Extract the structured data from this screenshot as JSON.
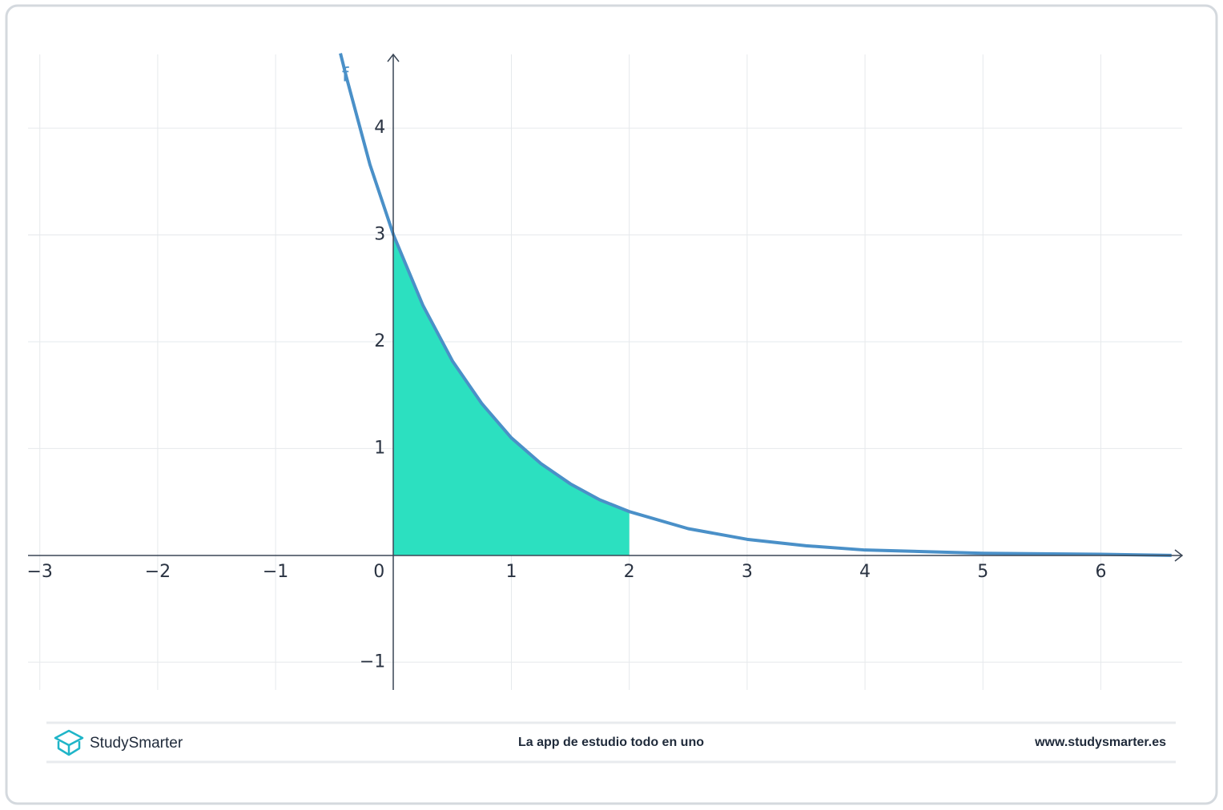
{
  "chart_data": {
    "type": "line",
    "series": [
      {
        "name": "f",
        "color": "#4a90c8",
        "x": [
          -0.45,
          -0.4,
          -0.2,
          0,
          0.25,
          0.5,
          0.75,
          1,
          1.25,
          1.5,
          1.75,
          2,
          2.5,
          3,
          3.5,
          4,
          5,
          6,
          6.6
        ],
        "values": [
          4.7,
          4.48,
          3.66,
          3,
          2.34,
          1.82,
          1.42,
          1.1,
          0.86,
          0.67,
          0.52,
          0.41,
          0.25,
          0.15,
          0.09,
          0.05,
          0.02,
          0.01,
          0.0
        ]
      }
    ],
    "fill_between": {
      "from": 0,
      "to": 2,
      "color": "#2ce0c0"
    },
    "xlim": [
      -3.1,
      6.69
    ],
    "ylim": [
      -1.26,
      4.69
    ],
    "xticks": [
      {
        "value": -3,
        "label": "−3"
      },
      {
        "value": -2,
        "label": "−2"
      },
      {
        "value": -1,
        "label": "−1"
      },
      0,
      1,
      2,
      3,
      4,
      5,
      6
    ],
    "yticks": [
      {
        "value": -1,
        "label": "−1"
      },
      1,
      2,
      3,
      4
    ],
    "grid": true
  },
  "footer": {
    "brand": "StudySmarter",
    "tagline": "La app de estudio todo en uno",
    "url": "www.studysmarter.es"
  }
}
